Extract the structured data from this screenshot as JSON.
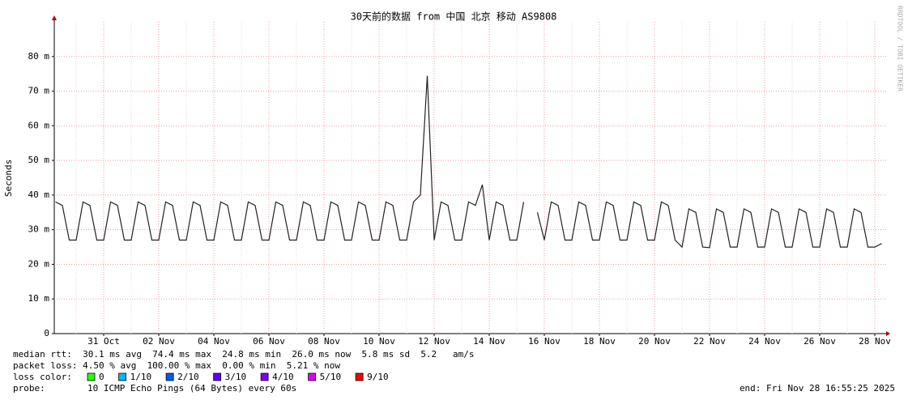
{
  "chart_data": {
    "type": "line",
    "title": "30天前的数据 from 中国 北京 移动 AS9808",
    "y_label": "Seconds",
    "watermark": "RRDTOOL / TOBI OETIKER",
    "color": "#222222",
    "grid": true,
    "ylim": [
      0,
      0.09
    ],
    "yticks": [
      0,
      {
        "value": 0.01,
        "label": "10 m"
      },
      {
        "value": 0.02,
        "label": "20 m"
      },
      {
        "value": 0.03,
        "label": "30 m"
      },
      {
        "value": 0.04,
        "label": "40 m"
      },
      {
        "value": 0.05,
        "label": "50 m"
      },
      {
        "value": 0.06,
        "label": "60 m"
      },
      {
        "value": 0.07,
        "label": "70 m"
      },
      {
        "value": 0.08,
        "label": "80 m"
      }
    ],
    "categories": [
      null,
      null,
      null,
      null,
      null,
      null,
      null,
      "31 Oct",
      null,
      null,
      null,
      null,
      null,
      null,
      null,
      "02 Nov",
      null,
      null,
      null,
      null,
      null,
      null,
      null,
      "04 Nov",
      null,
      null,
      null,
      null,
      null,
      null,
      null,
      "06 Nov",
      null,
      null,
      null,
      null,
      null,
      null,
      null,
      "08 Nov",
      null,
      null,
      null,
      null,
      null,
      null,
      null,
      "10 Nov",
      null,
      null,
      null,
      null,
      null,
      null,
      null,
      "12 Nov",
      null,
      null,
      null,
      null,
      null,
      null,
      null,
      "14 Nov",
      null,
      null,
      null,
      null,
      null,
      null,
      null,
      "16 Nov",
      null,
      null,
      null,
      null,
      null,
      null,
      null,
      "18 Nov",
      null,
      null,
      null,
      null,
      null,
      null,
      null,
      "20 Nov",
      null,
      null,
      null,
      null,
      null,
      null,
      null,
      "22 Nov",
      null,
      null,
      null,
      null,
      null,
      null,
      null,
      "24 Nov",
      null,
      null,
      null,
      null,
      null,
      null,
      null,
      "26 Nov",
      null,
      null,
      null,
      null,
      null,
      null,
      null,
      "28 Nov",
      null
    ],
    "values": [
      0.038,
      0.037,
      0.027,
      0.027,
      0.038,
      0.037,
      0.027,
      0.027,
      0.038,
      0.037,
      0.027,
      0.027,
      0.038,
      0.037,
      0.027,
      0.027,
      0.038,
      0.037,
      0.027,
      0.027,
      0.038,
      0.037,
      0.027,
      0.027,
      0.038,
      0.037,
      0.027,
      0.027,
      0.038,
      0.037,
      0.027,
      0.027,
      0.038,
      0.037,
      0.027,
      0.027,
      0.038,
      0.037,
      0.027,
      0.027,
      0.038,
      0.037,
      0.027,
      0.027,
      0.038,
      0.037,
      0.027,
      0.027,
      0.038,
      0.037,
      0.027,
      0.027,
      0.038,
      0.04,
      0.0744,
      0.027,
      0.038,
      0.037,
      0.027,
      0.027,
      0.038,
      0.037,
      0.043,
      0.027,
      0.038,
      0.037,
      0.027,
      0.027,
      0.038,
      null,
      0.035,
      0.027,
      0.038,
      0.037,
      0.027,
      0.027,
      0.038,
      0.037,
      0.027,
      0.027,
      0.038,
      0.037,
      0.027,
      0.027,
      0.038,
      0.037,
      0.027,
      0.027,
      0.038,
      0.037,
      0.027,
      0.025,
      0.036,
      0.035,
      0.025,
      0.0248,
      0.036,
      0.035,
      0.025,
      0.025,
      0.036,
      0.035,
      0.025,
      0.025,
      0.036,
      0.035,
      0.025,
      0.025,
      0.036,
      0.035,
      0.025,
      0.025,
      0.036,
      0.035,
      0.025,
      0.025,
      0.036,
      0.035,
      0.025,
      0.025,
      0.026
    ],
    "stats_lines": [
      "median rtt:  30.1 ms avg  74.4 ms max  24.8 ms min  26.0 ms now  5.8 ms sd  5.2   am/s",
      "packet loss: 4.50 % avg  100.00 % max  0.00 % min  5.21 % now"
    ],
    "legend_title": "loss color:",
    "loss_colors": [
      {
        "label": "0",
        "color": "#26ff00"
      },
      {
        "label": "1/10",
        "color": "#00b8ff"
      },
      {
        "label": "2/10",
        "color": "#0059ff"
      },
      {
        "label": "3/10",
        "color": "#5e00ff"
      },
      {
        "label": "4/10",
        "color": "#7e00ff"
      },
      {
        "label": "5/10",
        "color": "#dd00ff"
      },
      {
        "label": "9/10",
        "color": "#ff0000"
      }
    ],
    "probe_label": "probe:",
    "probe": "10 ICMP Echo Pings (64 Bytes) every 60s",
    "end": "end: Fri Nov 28 16:55:25 2025"
  }
}
